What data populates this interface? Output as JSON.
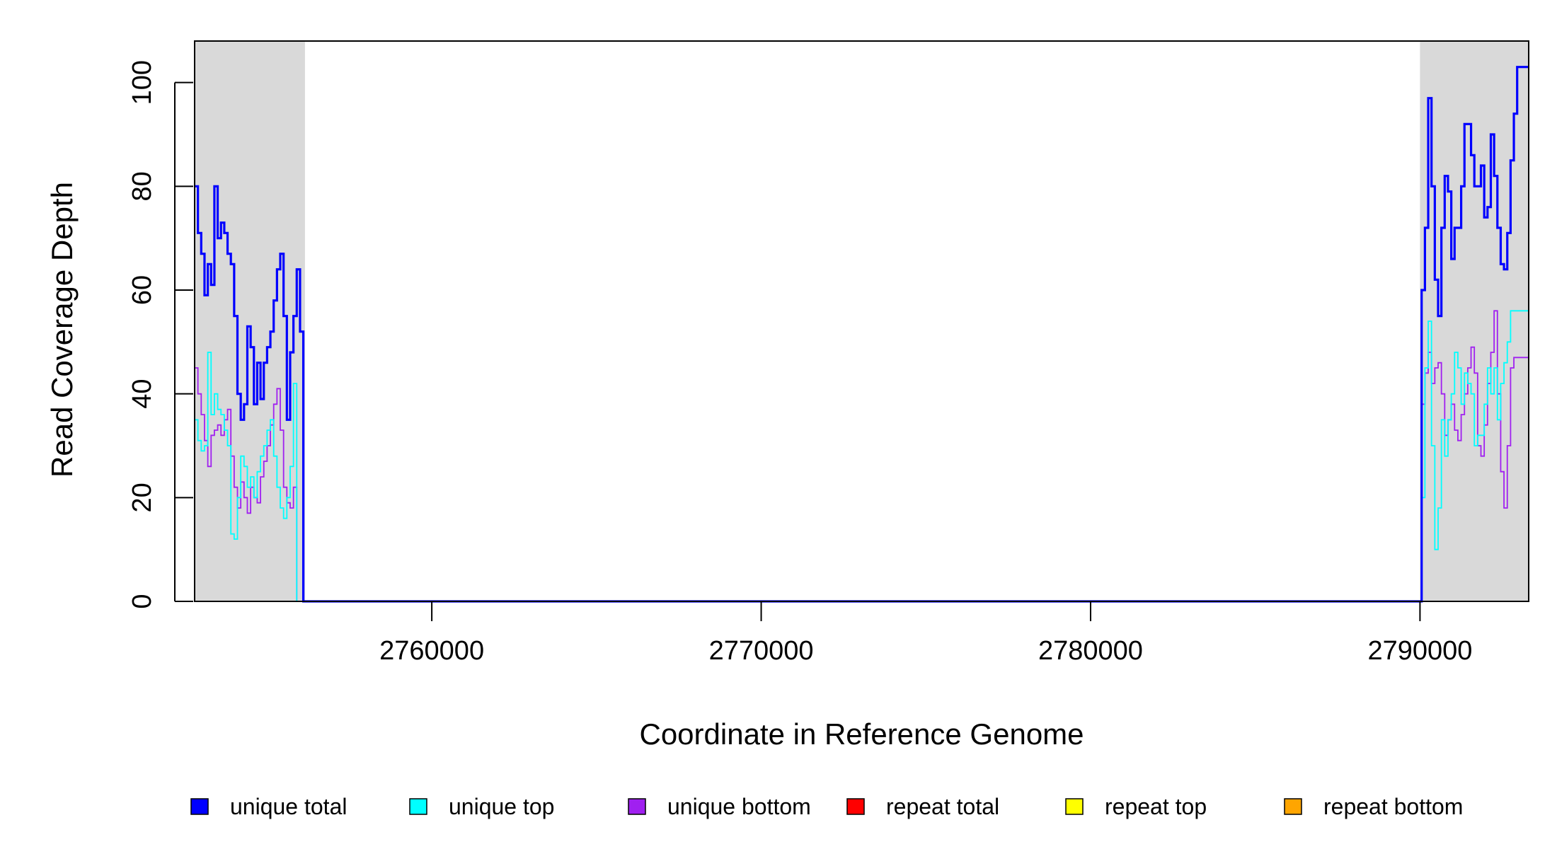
{
  "chart_data": {
    "type": "line",
    "title": "",
    "xlabel": "Coordinate in Reference Genome",
    "ylabel": "Read Coverage Depth",
    "xlim": [
      2752800,
      2793300
    ],
    "ylim": [
      0,
      108
    ],
    "x_ticks": [
      2760000,
      2770000,
      2780000,
      2790000
    ],
    "x_tick_labels": [
      "2760000",
      "2770000",
      "2780000",
      "2790000"
    ],
    "y_ticks": [
      0,
      20,
      40,
      60,
      80,
      100
    ],
    "y_tick_labels": [
      "0",
      "20",
      "40",
      "60",
      "80",
      "100"
    ],
    "shaded_regions": [
      [
        2752800,
        2756150
      ],
      [
        2790000,
        2793300
      ]
    ],
    "shade_color": "#d9d9d9",
    "grid": false,
    "legend_placement": "bottom",
    "series": [
      {
        "name": "unique total",
        "color": "#0000ff",
        "step": true,
        "x": [
          2752800,
          2752900,
          2753000,
          2753100,
          2753200,
          2753300,
          2753400,
          2753500,
          2753600,
          2753700,
          2753800,
          2753900,
          2754000,
          2754100,
          2754200,
          2754300,
          2754400,
          2754500,
          2754600,
          2754700,
          2754800,
          2754900,
          2755000,
          2755100,
          2755200,
          2755300,
          2755400,
          2755500,
          2755600,
          2755700,
          2755800,
          2755900,
          2756000,
          2756100,
          2756150,
          2756160,
          2790000,
          2790050,
          2790150,
          2790250,
          2790350,
          2790450,
          2790550,
          2790650,
          2790750,
          2790850,
          2790950,
          2791050,
          2791150,
          2791250,
          2791350,
          2791450,
          2791550,
          2791650,
          2791750,
          2791850,
          2791950,
          2792050,
          2792150,
          2792250,
          2792350,
          2792450,
          2792550,
          2792650,
          2792750,
          2792850,
          2792950,
          2793050,
          2793150,
          2793250
        ],
        "values": [
          80,
          71,
          67,
          59,
          65,
          61,
          80,
          70,
          73,
          71,
          67,
          65,
          55,
          40,
          35,
          38,
          53,
          49,
          38,
          46,
          39,
          46,
          49,
          52,
          58,
          64,
          67,
          55,
          35,
          48,
          55,
          64,
          52,
          0,
          0,
          0,
          0,
          60,
          72,
          97,
          80,
          62,
          55,
          72,
          82,
          79,
          66,
          72,
          72,
          80,
          92,
          92,
          86,
          80,
          80,
          84,
          74,
          76,
          90,
          82,
          72,
          65,
          64,
          71,
          85,
          94,
          103,
          103,
          103,
          103
        ]
      },
      {
        "name": "unique top",
        "color": "#00ffff",
        "step": true,
        "x": [
          2752800,
          2752900,
          2753000,
          2753100,
          2753200,
          2753300,
          2753400,
          2753500,
          2753600,
          2753700,
          2753800,
          2753900,
          2754000,
          2754100,
          2754200,
          2754300,
          2754400,
          2754500,
          2754600,
          2754700,
          2754800,
          2754900,
          2755000,
          2755100,
          2755200,
          2755300,
          2755400,
          2755500,
          2755600,
          2755700,
          2755800,
          2755900,
          2756000,
          2756100,
          2756150,
          2756160,
          2790000,
          2790050,
          2790150,
          2790250,
          2790350,
          2790450,
          2790550,
          2790650,
          2790750,
          2790850,
          2790950,
          2791050,
          2791150,
          2791250,
          2791350,
          2791450,
          2791550,
          2791650,
          2791750,
          2791850,
          2791950,
          2792050,
          2792150,
          2792250,
          2792350,
          2792450,
          2792550,
          2792650,
          2792750,
          2792850,
          2792950,
          2793050,
          2793150,
          2793250
        ],
        "values": [
          35,
          31,
          29,
          30,
          48,
          36,
          40,
          37,
          36,
          33,
          30,
          13,
          12,
          20,
          28,
          26,
          22,
          24,
          20,
          25,
          28,
          30,
          33,
          35,
          28,
          22,
          18,
          16,
          20,
          26,
          42,
          0,
          0,
          0,
          0,
          0,
          0,
          20,
          45,
          54,
          30,
          10,
          18,
          35,
          28,
          35,
          40,
          48,
          45,
          38,
          44,
          42,
          40,
          30,
          32,
          32,
          38,
          45,
          40,
          45,
          35,
          42,
          46,
          50,
          56,
          56,
          56,
          56,
          56,
          56
        ]
      },
      {
        "name": "unique bottom",
        "color": "#a020f0",
        "step": true,
        "x": [
          2752800,
          2752900,
          2753000,
          2753100,
          2753200,
          2753300,
          2753400,
          2753500,
          2753600,
          2753700,
          2753800,
          2753900,
          2754000,
          2754100,
          2754200,
          2754300,
          2754400,
          2754500,
          2754600,
          2754700,
          2754800,
          2754900,
          2755000,
          2755100,
          2755200,
          2755300,
          2755400,
          2755500,
          2755600,
          2755700,
          2755800,
          2755900,
          2756000,
          2756100,
          2756150,
          2756160,
          2790000,
          2790050,
          2790150,
          2790250,
          2790350,
          2790450,
          2790550,
          2790650,
          2790750,
          2790850,
          2790950,
          2791050,
          2791150,
          2791250,
          2791350,
          2791450,
          2791550,
          2791650,
          2791750,
          2791850,
          2791950,
          2792050,
          2792150,
          2792250,
          2792350,
          2792450,
          2792550,
          2792650,
          2792750,
          2792850,
          2792950,
          2793050,
          2793150,
          2793250
        ],
        "values": [
          45,
          40,
          36,
          31,
          26,
          32,
          33,
          34,
          32,
          35,
          37,
          28,
          22,
          18,
          23,
          20,
          17,
          22,
          20,
          19,
          24,
          27,
          30,
          34,
          38,
          41,
          33,
          22,
          19,
          18,
          22,
          0,
          0,
          0,
          0,
          0,
          0,
          38,
          44,
          48,
          42,
          45,
          46,
          40,
          32,
          35,
          38,
          33,
          31,
          36,
          40,
          45,
          49,
          44,
          30,
          28,
          34,
          42,
          48,
          56,
          40,
          25,
          18,
          30,
          45,
          47,
          47,
          47,
          47,
          47
        ]
      },
      {
        "name": "repeat total",
        "color": "#ff0000",
        "step": true,
        "x": [
          2752800,
          2793300
        ],
        "values": [
          0,
          0
        ]
      },
      {
        "name": "repeat top",
        "color": "#ffff00",
        "step": true,
        "x": [
          2752800,
          2793300
        ],
        "values": [
          0,
          0
        ]
      },
      {
        "name": "repeat bottom",
        "color": "#ffa500",
        "step": true,
        "x": [
          2752800,
          2793300
        ],
        "values": [
          0,
          0
        ]
      }
    ]
  }
}
